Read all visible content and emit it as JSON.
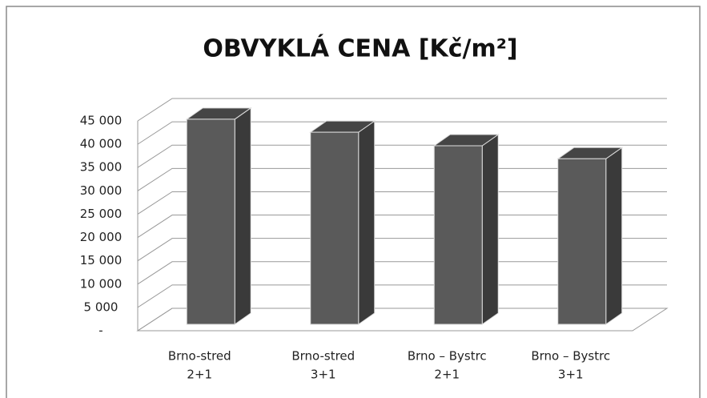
{
  "chart_data": {
    "type": "bar3d",
    "title": "OBVYKLÁ CENA [Kč/m²]",
    "categories": [
      [
        "Brno-stred",
        "2+1"
      ],
      [
        "Brno-stred",
        "3+1"
      ],
      [
        "Brno – Bystrc",
        "2+1"
      ],
      [
        "Brno – Bystrc",
        "3+1"
      ]
    ],
    "values": [
      44000,
      41200,
      38300,
      35500
    ],
    "color": "#5a5a5a",
    "ylim": [
      0,
      45000
    ],
    "yticks": [
      {
        "value": 0,
        "label": "-"
      },
      {
        "value": 5000,
        "label": "5 000"
      },
      {
        "value": 10000,
        "label": "10 000"
      },
      {
        "value": 15000,
        "label": "15 000"
      },
      {
        "value": 20000,
        "label": "20 000"
      },
      {
        "value": 25000,
        "label": "25 000"
      },
      {
        "value": 30000,
        "label": "30 000"
      },
      {
        "value": 35000,
        "label": "35 000"
      },
      {
        "value": 40000,
        "label": "40 000"
      },
      {
        "value": 45000,
        "label": "45 000"
      }
    ],
    "grid": true
  }
}
